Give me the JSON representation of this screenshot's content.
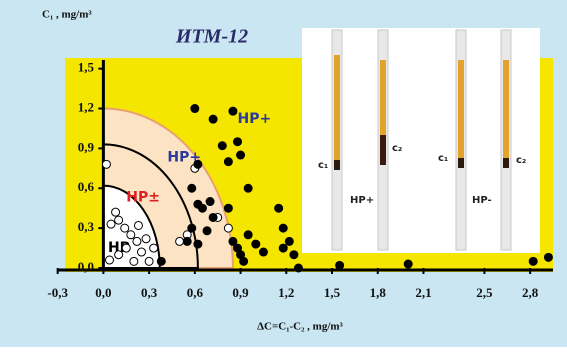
{
  "chart_data": {
    "type": "scatter",
    "title": "ИТМ-12",
    "y_label": "C₁ , mg/m³",
    "x_label": "ΔC=C₁-C₂ , mg/m³",
    "xlim": [
      -0.37,
      2.95
    ],
    "ylim": [
      0,
      1.58
    ],
    "xticks": [
      {
        "value": -0.3,
        "label": "-0,3"
      },
      {
        "value": 0,
        "label": "0,0"
      },
      {
        "value": 0.3,
        "label": "0,3"
      },
      {
        "value": 0.6,
        "label": "0,6"
      },
      {
        "value": 0.9,
        "label": "0,9"
      },
      {
        "value": 1.2,
        "label": "1,2"
      },
      {
        "value": 1.5,
        "label": "1,5"
      },
      {
        "value": 1.8,
        "label": "1,8"
      },
      {
        "value": 2.1,
        "label": "2,1"
      },
      {
        "value": 2.5,
        "label": "2,5"
      },
      {
        "value": 2.8,
        "label": "2,8"
      }
    ],
    "yticks": [
      {
        "value": 0,
        "label": "0,0"
      },
      {
        "value": 0.3,
        "label": "0,3"
      },
      {
        "value": 0.6,
        "label": "0,6"
      },
      {
        "value": 0.9,
        "label": "0,9"
      },
      {
        "value": 1.2,
        "label": "1,2"
      },
      {
        "value": 1.5,
        "label": "1,5"
      }
    ],
    "regions": [
      {
        "x_radius": 0.85,
        "y_radius": 1.2,
        "color": "#fbe3c4",
        "stroke": "#e8a070"
      },
      {
        "x_radius": 0.62,
        "y_radius": 0.93,
        "color": "none",
        "stroke": "#000000"
      },
      {
        "x_radius": 0.37,
        "y_radius": 0.62,
        "color": "#ffffff",
        "stroke": "#000000"
      }
    ],
    "annotations": [
      {
        "text": "HP+",
        "x": 0.88,
        "y": 1.12,
        "color": "#2a3a9a"
      },
      {
        "text": "HP+",
        "x": 0.42,
        "y": 0.83,
        "color": "#2a3a9a"
      },
      {
        "text": "HP±",
        "x": 0.15,
        "y": 0.53,
        "color": "#e02020"
      },
      {
        "text": "HP",
        "x": 0.03,
        "y": 0.15,
        "color": "#000000"
      }
    ],
    "series": [
      {
        "color": "#ffffff",
        "x": [
          0.02,
          0.05,
          0.08,
          0.1,
          0.14,
          0.18,
          0.22,
          0.25,
          0.28,
          0.3,
          0.2,
          0.1,
          0.04,
          0.15,
          0.33,
          0.23,
          0.5,
          0.55,
          0.75,
          0.82,
          0.6
        ],
        "values": [
          0.78,
          0.33,
          0.42,
          0.36,
          0.3,
          0.25,
          0.2,
          0.12,
          0.22,
          0.05,
          0.05,
          0.1,
          0.06,
          0.15,
          0.15,
          0.32,
          0.2,
          0.25,
          0.38,
          0.3,
          0.75
        ]
      },
      {
        "color": "#000000",
        "x": [
          0.6,
          0.72,
          0.85,
          0.88,
          0.78,
          0.82,
          0.9,
          0.95,
          0.62,
          0.58,
          0.62,
          0.65,
          0.7,
          0.72,
          0.68,
          0.62,
          0.58,
          0.55,
          0.82,
          0.85,
          0.88,
          0.9,
          0.95,
          1.0,
          1.05,
          0.92,
          1.15,
          1.18,
          1.22,
          1.25,
          1.18,
          1.28,
          1.55,
          2.0,
          2.82,
          2.92,
          0.38
        ],
        "values": [
          1.2,
          1.12,
          1.18,
          0.95,
          0.92,
          0.8,
          0.85,
          0.6,
          0.78,
          0.6,
          0.48,
          0.45,
          0.5,
          0.38,
          0.28,
          0.18,
          0.3,
          0.2,
          0.45,
          0.2,
          0.15,
          0.1,
          0.25,
          0.18,
          0.12,
          0.05,
          0.45,
          0.3,
          0.2,
          0.1,
          0.15,
          0.0,
          0.02,
          0.03,
          0.05,
          0.08,
          0.05
        ]
      }
    ]
  },
  "inset": {
    "labels": [
      "c₁",
      "c₂",
      "HP+",
      "c₁",
      "c₂",
      "HP-"
    ]
  }
}
